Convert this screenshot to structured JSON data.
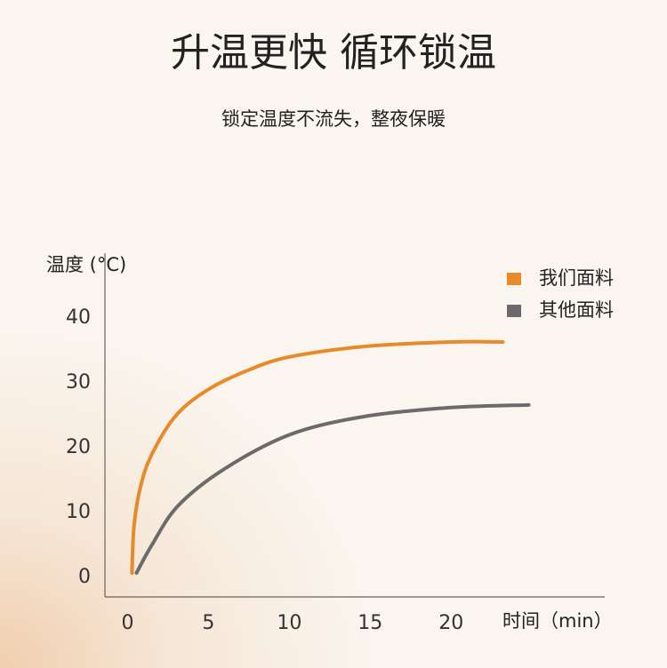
{
  "chart_data": {
    "type": "line",
    "title": "升温更快 循环锁温",
    "subtitle": "锁定温度不流失，整夜保暖",
    "y_label": "温度 (°C)",
    "x_label": "时间（min）",
    "xlim": [
      -1.4,
      29.5
    ],
    "ylim": [
      -3,
      50
    ],
    "xticks": [
      0,
      5,
      10,
      15,
      20
    ],
    "yticks": [
      0,
      10,
      20,
      30,
      40
    ],
    "grid": false,
    "legend": "top-right",
    "series": [
      {
        "name": "我们面料",
        "color": "#e8892a",
        "x": [
          0.27,
          0.4,
          0.8,
          1.5,
          3,
          5,
          7.5,
          10,
          14.6,
          20,
          23.2
        ],
        "values": [
          0.7,
          8,
          14,
          19,
          25,
          29,
          32,
          34,
          35.6,
          36.3,
          36.3
        ]
      },
      {
        "name": "其他面料",
        "color": "#6b6b6b",
        "x": [
          0.55,
          1.5,
          3.1,
          5.9,
          10,
          14.6,
          20,
          24.8
        ],
        "values": [
          0.7,
          5,
          11,
          16.6,
          22,
          24.8,
          26.2,
          26.6
        ]
      }
    ]
  }
}
